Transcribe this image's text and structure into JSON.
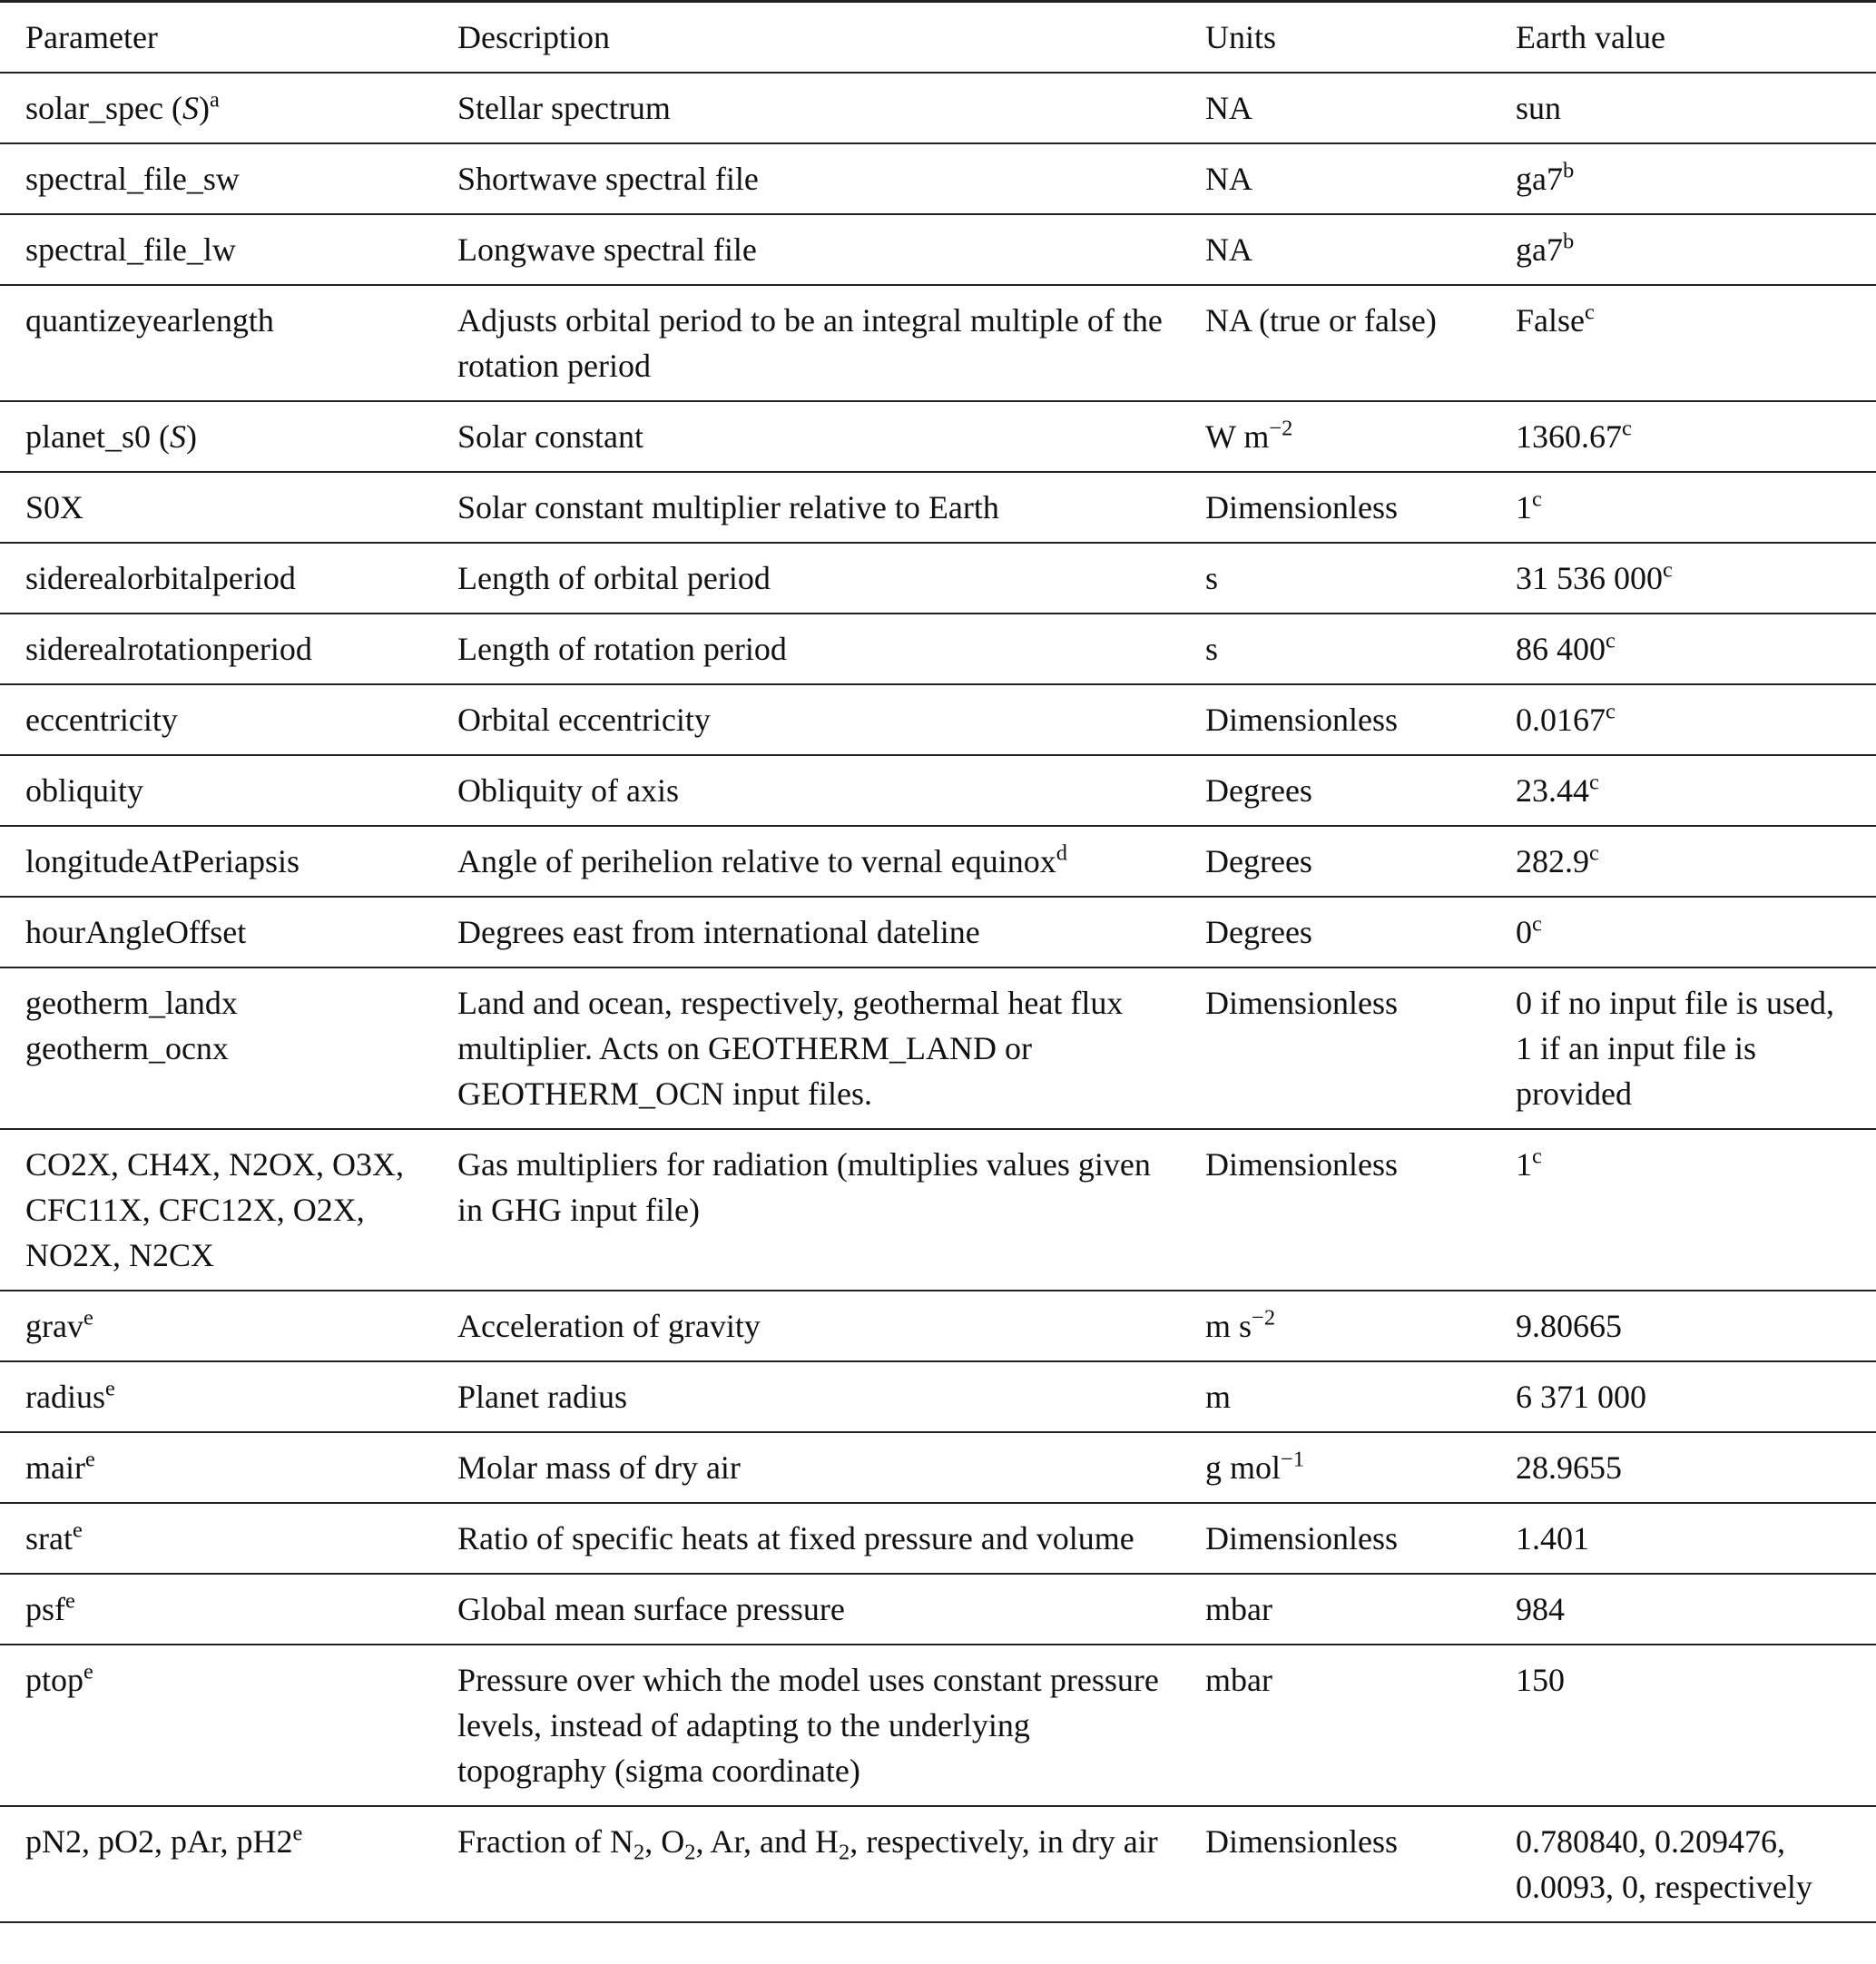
{
  "header": [
    "Parameter",
    "Description",
    "Units",
    "Earth value"
  ],
  "rows": [
    [
      [
        "solar_spec (",
        {
          "i": "S"
        },
        ")",
        {
          "sup": "a"
        }
      ],
      [
        "Stellar spectrum"
      ],
      [
        "NA"
      ],
      [
        "sun"
      ]
    ],
    [
      [
        "spectral_file_sw"
      ],
      [
        "Shortwave spectral file"
      ],
      [
        "NA"
      ],
      [
        "ga7",
        {
          "sup": "b"
        }
      ]
    ],
    [
      [
        "spectral_file_lw"
      ],
      [
        "Longwave spectral file"
      ],
      [
        "NA"
      ],
      [
        "ga7",
        {
          "sup": "b"
        }
      ]
    ],
    [
      [
        "quantizeyearlength"
      ],
      [
        "Adjusts orbital period to be an integral multiple of the rotation period"
      ],
      [
        "NA (true or false)"
      ],
      [
        "False",
        {
          "sup": "c"
        }
      ]
    ],
    [
      [
        "planet_s0 (",
        {
          "i": "S"
        },
        ")"
      ],
      [
        "Solar constant"
      ],
      [
        "W m",
        {
          "sup": "−2"
        }
      ],
      [
        "1360.67",
        {
          "sup": "c"
        }
      ]
    ],
    [
      [
        "S0X"
      ],
      [
        "Solar constant multiplier relative to Earth"
      ],
      [
        "Dimensionless"
      ],
      [
        "1",
        {
          "sup": "c"
        }
      ]
    ],
    [
      [
        "siderealorbitalperiod"
      ],
      [
        "Length of orbital period"
      ],
      [
        "s"
      ],
      [
        "31 536 000",
        {
          "sup": "c"
        }
      ]
    ],
    [
      [
        "siderealrotationperiod"
      ],
      [
        "Length of rotation period"
      ],
      [
        "s"
      ],
      [
        "86 400",
        {
          "sup": "c"
        }
      ]
    ],
    [
      [
        "eccentricity"
      ],
      [
        "Orbital eccentricity"
      ],
      [
        "Dimensionless"
      ],
      [
        "0.0167",
        {
          "sup": "c"
        }
      ]
    ],
    [
      [
        "obliquity"
      ],
      [
        "Obliquity of axis"
      ],
      [
        "Degrees"
      ],
      [
        "23.44",
        {
          "sup": "c"
        }
      ]
    ],
    [
      [
        "longitudeAtPeriapsis"
      ],
      [
        "Angle of perihelion relative to vernal equinox",
        {
          "sup": "d"
        }
      ],
      [
        "Degrees"
      ],
      [
        "282.9",
        {
          "sup": "c"
        }
      ]
    ],
    [
      [
        "hourAngleOffset"
      ],
      [
        "Degrees east from international dateline"
      ],
      [
        "Degrees"
      ],
      [
        "0",
        {
          "sup": "c"
        }
      ]
    ],
    [
      [
        "geotherm_landx",
        {
          "line": "geotherm_ocnx"
        }
      ],
      [
        "Land and ocean, respectively, geothermal heat flux multiplier. Acts on GEOTHERM_LAND or GEOTHERM_OCN input files."
      ],
      [
        "Dimensionless"
      ],
      [
        "0 if no input file is used, 1 if an input file is provided"
      ]
    ],
    [
      [
        "CO2X, CH4X, N2OX, O3X, CFC11X, CFC12X, O2X, NO2X, N2CX"
      ],
      [
        "Gas multipliers for radiation (multiplies values given in GHG input file)"
      ],
      [
        "Dimensionless"
      ],
      [
        "1",
        {
          "sup": "c"
        }
      ]
    ],
    [
      [
        "grav",
        {
          "sup": "e"
        }
      ],
      [
        "Acceleration of gravity"
      ],
      [
        "m s",
        {
          "sup": "−2"
        }
      ],
      [
        "9.80665"
      ]
    ],
    [
      [
        "radius",
        {
          "sup": "e"
        }
      ],
      [
        "Planet radius"
      ],
      [
        "m"
      ],
      [
        "6 371 000"
      ]
    ],
    [
      [
        "mair",
        {
          "sup": "e"
        }
      ],
      [
        "Molar mass of dry air"
      ],
      [
        "g mol",
        {
          "sup": "−1"
        }
      ],
      [
        "28.9655"
      ]
    ],
    [
      [
        "srat",
        {
          "sup": "e"
        }
      ],
      [
        "Ratio of specific heats at fixed pressure and volume"
      ],
      [
        "Dimensionless"
      ],
      [
        "1.401"
      ]
    ],
    [
      [
        "psf",
        {
          "sup": "e"
        }
      ],
      [
        "Global mean surface pressure"
      ],
      [
        "mbar"
      ],
      [
        "984"
      ]
    ],
    [
      [
        "ptop",
        {
          "sup": "e"
        }
      ],
      [
        "Pressure over which the model uses constant pressure levels, instead of adapting to the underlying topography (sigma coordinate)"
      ],
      [
        "mbar"
      ],
      [
        "150"
      ]
    ],
    [
      [
        "pN2, pO2, pAr, pH2",
        {
          "sup": "e"
        }
      ],
      [
        "Fraction of N",
        {
          "sub": "2"
        },
        ", O",
        {
          "sub": "2"
        },
        ", Ar, and H",
        {
          "sub": "2"
        },
        ", respectively, in dry air"
      ],
      [
        "Dimensionless"
      ],
      [
        "0.780840, 0.209476, 0.0093, 0, respectively"
      ]
    ]
  ]
}
